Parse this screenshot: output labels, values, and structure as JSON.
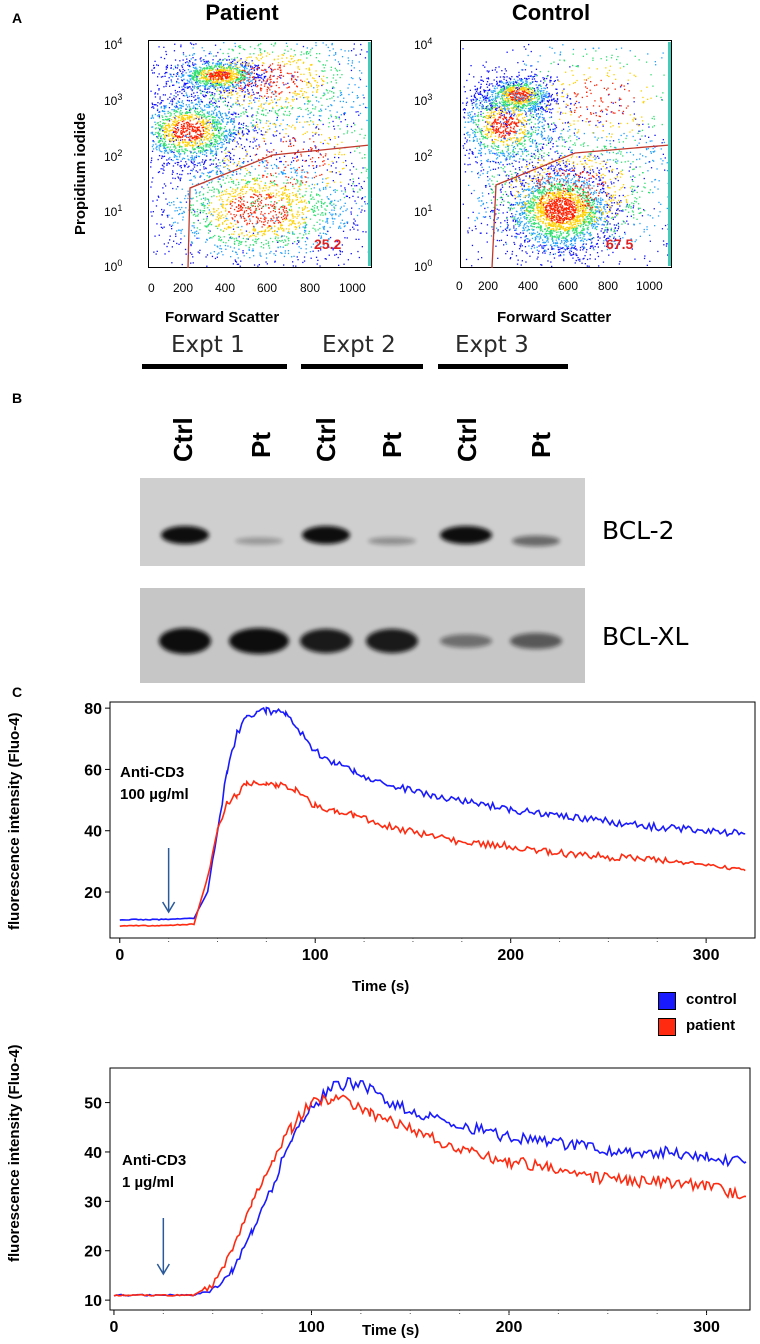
{
  "panel_labels": {
    "a": "A",
    "b": "B",
    "c": "C"
  },
  "flow": {
    "x_label": "Forward Scatter",
    "y_label": "Propidium iodide",
    "x_ticks": [
      "0",
      "200",
      "400",
      "600",
      "800",
      "1000"
    ],
    "y_ticks": [
      {
        "base": "10",
        "exp": "4"
      },
      {
        "base": "10",
        "exp": "3"
      },
      {
        "base": "10",
        "exp": "2"
      },
      {
        "base": "10",
        "exp": "1"
      },
      {
        "base": "10",
        "exp": "0"
      }
    ],
    "plots": [
      {
        "title": "Patient",
        "percent": "25.2"
      },
      {
        "title": "Control",
        "percent": "67.5"
      }
    ]
  },
  "western": {
    "experiments": [
      "Expt 1",
      "Expt 2",
      "Expt 3"
    ],
    "lanes": [
      "Ctrl",
      "Pt",
      "Ctrl",
      "Pt",
      "Ctrl",
      "Pt"
    ],
    "proteins": [
      "BCL-2",
      "BCL-XL"
    ],
    "relative_band_intensity": {
      "BCL-2": [
        1.0,
        0.1,
        1.0,
        0.15,
        1.0,
        0.4
      ],
      "BCL-XL": [
        1.0,
        1.0,
        0.9,
        0.9,
        0.3,
        0.45
      ]
    }
  },
  "calcium": {
    "legend": [
      {
        "name": "control",
        "color": "#1a1aff"
      },
      {
        "name": "patient",
        "color": "#ff2a10"
      }
    ]
  },
  "chart_data": [
    {
      "type": "line",
      "xlabel": "Time (s)",
      "ylabel": "fluorescence intensity (Fluo-4)",
      "annotation": [
        "Anti-CD3",
        "100 µg/ml"
      ],
      "xlim": [
        -5,
        325
      ],
      "ylim": [
        5,
        82
      ],
      "x_ticks": [
        "0",
        "100",
        "200",
        "300"
      ],
      "y_ticks": [
        "20",
        "40",
        "60",
        "80"
      ],
      "stimulus_time": 25,
      "series": [
        {
          "name": "control",
          "color": "#1a1aff",
          "x": [
            0,
            20,
            38,
            45,
            50,
            55,
            60,
            65,
            70,
            75,
            80,
            85,
            90,
            100,
            110,
            120,
            140,
            160,
            180,
            200,
            220,
            240,
            260,
            280,
            300,
            320
          ],
          "y": [
            11,
            11,
            11.5,
            20,
            40,
            60,
            72,
            77,
            79,
            79,
            79,
            78,
            74,
            66,
            62,
            59,
            55,
            51,
            49,
            47,
            45,
            44,
            42,
            41,
            40,
            39
          ]
        },
        {
          "name": "patient",
          "color": "#ff2a10",
          "x": [
            0,
            20,
            38,
            45,
            50,
            55,
            60,
            65,
            70,
            75,
            80,
            90,
            100,
            110,
            120,
            140,
            160,
            180,
            200,
            220,
            240,
            260,
            280,
            300,
            320
          ],
          "y": [
            9,
            9,
            9.5,
            25,
            40,
            49,
            52,
            55,
            56,
            56,
            55,
            53,
            48,
            46,
            45,
            41,
            38,
            36,
            35,
            33,
            32,
            31,
            30,
            29,
            27
          ]
        }
      ]
    },
    {
      "type": "line",
      "xlabel": "Time (s)",
      "ylabel": "fluorescence intensity (Fluo-4)",
      "annotation": [
        "Anti-CD3",
        "1 µg/ml"
      ],
      "xlim": [
        -2,
        322
      ],
      "ylim": [
        8,
        57
      ],
      "x_ticks": [
        "0",
        "100",
        "200",
        "300"
      ],
      "y_ticks": [
        "10",
        "20",
        "30",
        "40",
        "50"
      ],
      "stimulus_time": 25,
      "series": [
        {
          "name": "control",
          "color": "#1a1aff",
          "x": [
            0,
            20,
            40,
            50,
            60,
            70,
            80,
            90,
            100,
            110,
            120,
            130,
            140,
            160,
            180,
            200,
            220,
            240,
            260,
            280,
            300,
            320
          ],
          "y": [
            11,
            11,
            11,
            12,
            16,
            24,
            33,
            43,
            49,
            53,
            54,
            53,
            50,
            47,
            45,
            43,
            42,
            41,
            40,
            40,
            39,
            38
          ]
        },
        {
          "name": "patient",
          "color": "#ff2a10",
          "x": [
            0,
            20,
            40,
            50,
            60,
            70,
            80,
            90,
            100,
            110,
            120,
            130,
            140,
            160,
            180,
            200,
            220,
            240,
            260,
            280,
            300,
            320
          ],
          "y": [
            11,
            11,
            11,
            13,
            20,
            30,
            38,
            45,
            50,
            51,
            50,
            48,
            46,
            43,
            40,
            38,
            37,
            35,
            34,
            34,
            33,
            31
          ]
        }
      ]
    }
  ]
}
